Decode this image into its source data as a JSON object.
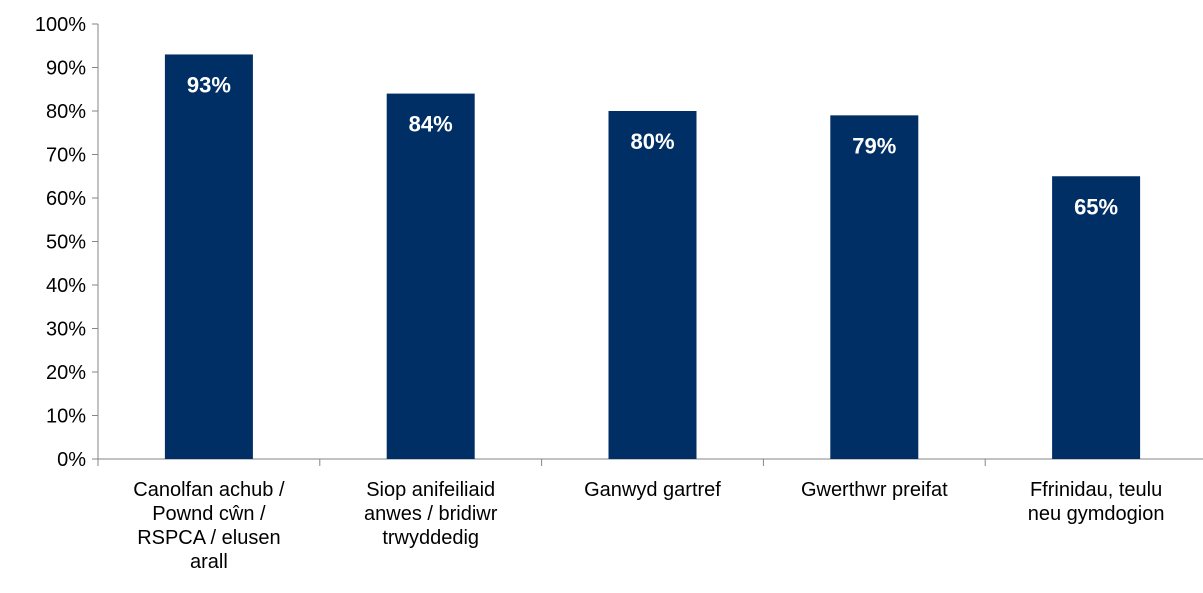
{
  "chart_data": {
    "type": "bar",
    "categories": [
      [
        "Canolfan achub /",
        "Pownd cŵn /",
        "RSPCA / elusen",
        "arall"
      ],
      [
        "Siop anifeiliaid",
        "anwes / bridiwr",
        "trwyddedig"
      ],
      [
        "Ganwyd gartref"
      ],
      [
        "Gwerthwr preifat"
      ],
      [
        "Ffrinidau, teulu",
        "neu gymdogion"
      ]
    ],
    "values": [
      93,
      84,
      80,
      79,
      65
    ],
    "data_labels": [
      "93%",
      "84%",
      "80%",
      "79%",
      "65%"
    ],
    "ylim": [
      0,
      100
    ],
    "yticks": [
      0,
      10,
      20,
      30,
      40,
      50,
      60,
      70,
      80,
      90,
      100
    ],
    "ytick_labels": [
      "0%",
      "10%",
      "20%",
      "30%",
      "40%",
      "50%",
      "60%",
      "70%",
      "80%",
      "90%",
      "100%"
    ],
    "grid": false,
    "legend": "none",
    "bar_color": "#002f66",
    "axis_color": "#868686"
  }
}
